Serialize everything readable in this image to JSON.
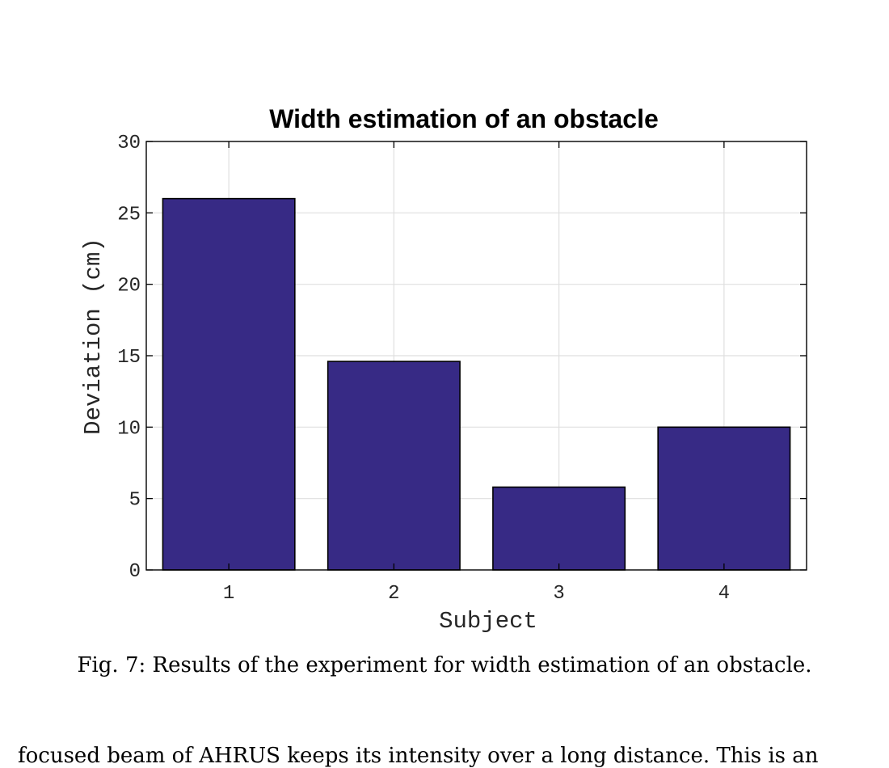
{
  "chart_data": {
    "type": "bar",
    "title": "Width estimation of an obstacle",
    "xlabel": "Subject",
    "ylabel": "Deviation (cm)",
    "categories": [
      "1",
      "2",
      "3",
      "4"
    ],
    "values": [
      26,
      14.6,
      5.8,
      10
    ],
    "ylim": [
      0,
      30
    ],
    "yticks": [
      "0",
      "5",
      "10",
      "15",
      "20",
      "25",
      "30"
    ],
    "grid": true,
    "bar_color": "#372a85",
    "bar_edge_color": "#000000"
  },
  "caption": "Fig. 7: Results of the experiment for width estimation of an obstacle.",
  "body_text": "focused beam of AHRUS keeps its intensity over a long distance. This is an"
}
